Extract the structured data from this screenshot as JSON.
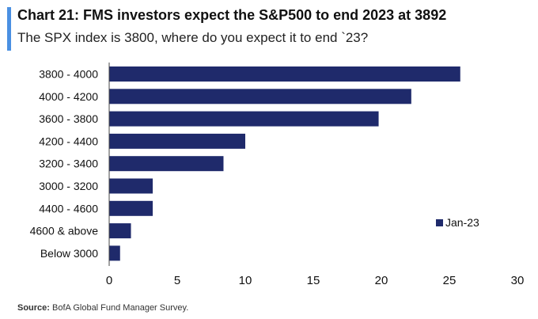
{
  "header": {
    "title": "Chart 21: FMS investors expect the S&P500 to end 2023 at 3892",
    "subtitle": "The SPX index is 3800, where do you expect it to end `23?"
  },
  "source": {
    "label": "Source:",
    "text": "BofA Global Fund Manager Survey."
  },
  "colors": {
    "bar": "#1f2a6b",
    "accent": "#4a90e2"
  },
  "chart_data": {
    "type": "bar",
    "orientation": "horizontal",
    "categories": [
      "3800 - 4000",
      "4000 - 4200",
      "3600 - 3800",
      "4200 - 4400",
      "3200 - 3400",
      "3000 - 3200",
      "4400 - 4600",
      "4600 & above",
      "Below 3000"
    ],
    "series": [
      {
        "name": "Jan-23",
        "values": [
          25.8,
          22.2,
          19.8,
          10.0,
          8.4,
          3.2,
          3.2,
          1.6,
          0.8
        ]
      }
    ],
    "xlim": [
      0,
      30
    ],
    "xticks": [
      0,
      5,
      10,
      15,
      20,
      25,
      30
    ],
    "grid": false,
    "legend": "right"
  }
}
